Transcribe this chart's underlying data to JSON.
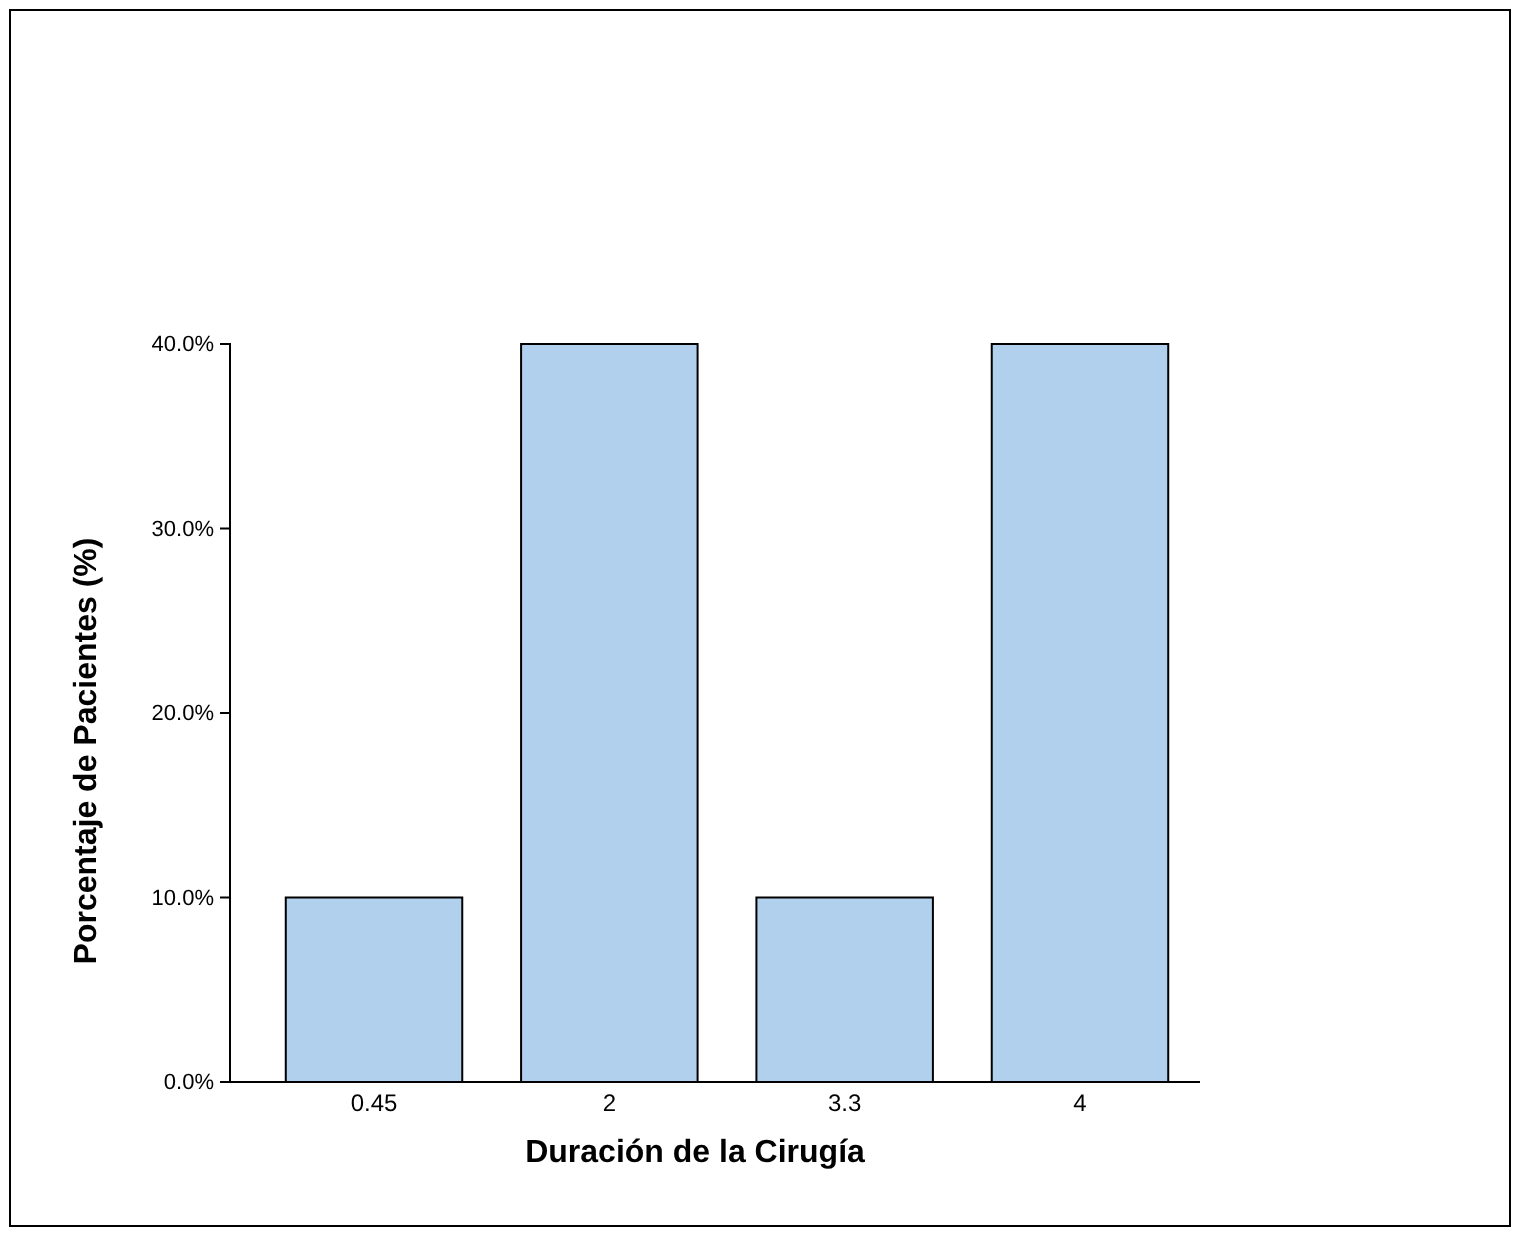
{
  "chart_data": {
    "type": "bar",
    "xlabel": "Duración de la Cirugía",
    "ylabel": "Porcentaje de Pacientes (%)",
    "categories": [
      "0.45",
      "2",
      "3.3",
      "4"
    ],
    "values": [
      10,
      40,
      10,
      40
    ],
    "color": "#b0d0ee",
    "ylim": [
      0,
      40
    ],
    "yticks": [
      {
        "value": 0,
        "label": "0.0%"
      },
      {
        "value": 10,
        "label": "10.0%"
      },
      {
        "value": 20,
        "label": "20.0%"
      },
      {
        "value": 30,
        "label": "30.0%"
      },
      {
        "value": 40,
        "label": "40.0%"
      }
    ],
    "grid": false
  }
}
